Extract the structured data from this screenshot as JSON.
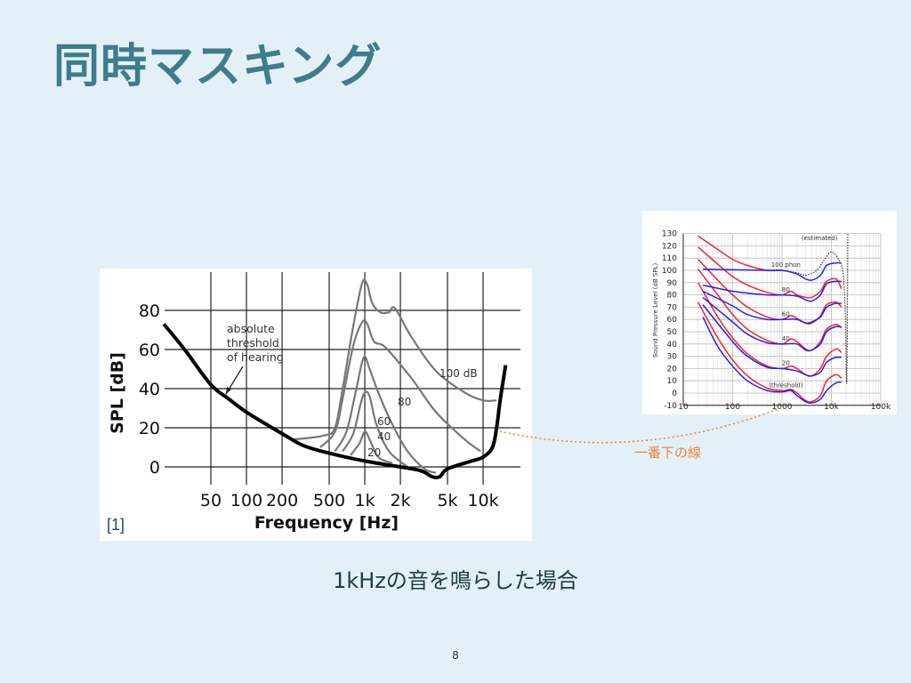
{
  "slide": {
    "title": "同時マスキング",
    "caption": "1kHzの音を鳴らした場合",
    "reference": "[1]",
    "connector_note": "一番下の線",
    "page_number": "8",
    "colors": {
      "title": "#3e7d8b",
      "background": "#e4f0f7",
      "note": "#e8873a"
    }
  },
  "chart_data": [
    {
      "type": "line",
      "xlabel": "Frequency [Hz]",
      "ylabel": "SPL [dB]",
      "x_scale": "log",
      "xlim": [
        20,
        16000
      ],
      "ylim": [
        -8,
        96
      ],
      "grid": true,
      "x_ticks": [
        {
          "v": 50,
          "label": "50"
        },
        {
          "v": 100,
          "label": "100"
        },
        {
          "v": 200,
          "label": "200"
        },
        {
          "v": 500,
          "label": "500"
        },
        {
          "v": 1000,
          "label": "1k"
        },
        {
          "v": 2000,
          "label": "2k"
        },
        {
          "v": 5000,
          "label": "5k"
        },
        {
          "v": 10000,
          "label": "10k"
        }
      ],
      "y_ticks": [
        0,
        20,
        40,
        60,
        80
      ],
      "annotation": [
        "absolute",
        "threshold",
        "of hearing"
      ],
      "series": [
        {
          "name": "absolute threshold of hearing",
          "color": "#000000",
          "points": [
            [
              20,
              73
            ],
            [
              30,
              60
            ],
            [
              50,
              42
            ],
            [
              70,
              35
            ],
            [
              100,
              28
            ],
            [
              200,
              17
            ],
            [
              300,
              11
            ],
            [
              500,
              7
            ],
            [
              1000,
              3
            ],
            [
              2000,
              0
            ],
            [
              3000,
              -2
            ],
            [
              3700,
              -5
            ],
            [
              4300,
              -5
            ],
            [
              5000,
              -1
            ],
            [
              8000,
              3
            ],
            [
              10000,
              5
            ],
            [
              12000,
              10
            ],
            [
              13000,
              20
            ],
            [
              14000,
              35
            ],
            [
              15500,
              52
            ]
          ]
        },
        {
          "name": "100 dB",
          "color": "#777777",
          "points": [
            [
              250,
              14
            ],
            [
              450,
              16
            ],
            [
              560,
              20
            ],
            [
              650,
              40
            ],
            [
              800,
              72
            ],
            [
              950,
              94
            ],
            [
              1050,
              93
            ],
            [
              1150,
              84
            ],
            [
              1350,
              79
            ],
            [
              1600,
              79
            ],
            [
              1800,
              81
            ],
            [
              2500,
              66
            ],
            [
              4000,
              49
            ],
            [
              7000,
              38
            ],
            [
              10000,
              34
            ],
            [
              13000,
              34
            ]
          ]
        },
        {
          "name": "80",
          "color": "#777777",
          "points": [
            [
              420,
              10
            ],
            [
              560,
              18
            ],
            [
              650,
              35
            ],
            [
              800,
              62
            ],
            [
              950,
              74
            ],
            [
              1050,
              73
            ],
            [
              1200,
              64
            ],
            [
              1500,
              61
            ],
            [
              2500,
              45
            ],
            [
              4000,
              28
            ],
            [
              7000,
              14
            ],
            [
              9500,
              8
            ]
          ]
        },
        {
          "name": "60",
          "color": "#777777",
          "points": [
            [
              560,
              8
            ],
            [
              700,
              18
            ],
            [
              850,
              40
            ],
            [
              980,
              56
            ],
            [
              1100,
              50
            ],
            [
              1300,
              38
            ],
            [
              1700,
              22
            ],
            [
              2300,
              8
            ],
            [
              3200,
              -1
            ],
            [
              4000,
              -3
            ]
          ]
        },
        {
          "name": "40",
          "color": "#777777",
          "points": [
            [
              650,
              8
            ],
            [
              800,
              17
            ],
            [
              920,
              32
            ],
            [
              1000,
              38
            ],
            [
              1100,
              36
            ],
            [
              1250,
              22
            ],
            [
              1600,
              8
            ],
            [
              2300,
              0
            ]
          ]
        },
        {
          "name": "20",
          "color": "#777777",
          "points": [
            [
              760,
              6
            ],
            [
              900,
              12
            ],
            [
              1000,
              18
            ],
            [
              1100,
              14
            ],
            [
              1300,
              5
            ],
            [
              1700,
              2
            ]
          ]
        }
      ]
    },
    {
      "type": "line",
      "ylabel": "Sound Pressure Level (dB SPL)",
      "x_scale": "log",
      "xlim": [
        10,
        100000
      ],
      "ylim": [
        -10,
        130
      ],
      "grid": true,
      "x_ticks": [
        {
          "v": 10,
          "label": "10"
        },
        {
          "v": 100,
          "label": "100"
        },
        {
          "v": 1000,
          "label": "1000"
        },
        {
          "v": 10000,
          "label": "10k"
        },
        {
          "v": 100000,
          "label": "100k"
        }
      ],
      "y_ticks": [
        -10,
        0,
        10,
        20,
        30,
        40,
        50,
        60,
        70,
        80,
        90,
        100,
        110,
        120,
        130
      ],
      "annotations": [
        {
          "text": "100 phon",
          "x": 1000,
          "y": 102
        },
        {
          "text": "80",
          "x": 1000,
          "y": 82
        },
        {
          "text": "60",
          "x": 1000,
          "y": 62
        },
        {
          "text": "40",
          "x": 1000,
          "y": 42
        },
        {
          "text": "20",
          "x": 1000,
          "y": 22
        },
        {
          "text": "(threshold)",
          "x": 1000,
          "y": 4
        },
        {
          "text": "(estimated)",
          "x": 12000,
          "y": 124
        }
      ],
      "series": [
        {
          "color": "#ff2020",
          "points": [
            [
              20,
              74
            ],
            [
              50,
              45
            ],
            [
              100,
              27
            ],
            [
              200,
              14
            ],
            [
              500,
              4
            ],
            [
              1000,
              2
            ],
            [
              1500,
              3
            ],
            [
              2000,
              0
            ],
            [
              3000,
              -6
            ],
            [
              4000,
              -7
            ],
            [
              6000,
              -2
            ],
            [
              8000,
              10
            ],
            [
              12500,
              15
            ],
            [
              16000,
              12
            ]
          ]
        },
        {
          "color": "#ff2020",
          "points": [
            [
              20,
              90
            ],
            [
              50,
              62
            ],
            [
              100,
              45
            ],
            [
              200,
              32
            ],
            [
              500,
              22
            ],
            [
              1000,
              20
            ],
            [
              1500,
              22
            ],
            [
              2000,
              20
            ],
            [
              3000,
              15
            ],
            [
              4000,
              14
            ],
            [
              6000,
              20
            ],
            [
              8000,
              30
            ],
            [
              12500,
              36
            ],
            [
              16000,
              33
            ]
          ]
        },
        {
          "color": "#ff2020",
          "points": [
            [
              20,
              101
            ],
            [
              50,
              80
            ],
            [
              100,
              64
            ],
            [
              200,
              52
            ],
            [
              500,
              43
            ],
            [
              1000,
              40
            ],
            [
              1500,
              44
            ],
            [
              2000,
              42
            ],
            [
              3000,
              36
            ],
            [
              4000,
              35
            ],
            [
              6000,
              42
            ],
            [
              8000,
              52
            ],
            [
              12500,
              56
            ],
            [
              16000,
              53
            ]
          ]
        },
        {
          "color": "#ff2020",
          "points": [
            [
              20,
              109
            ],
            [
              50,
              92
            ],
            [
              100,
              80
            ],
            [
              200,
              70
            ],
            [
              500,
              62
            ],
            [
              1000,
              60
            ],
            [
              1500,
              63
            ],
            [
              2000,
              61
            ],
            [
              3000,
              57
            ],
            [
              4000,
              57
            ],
            [
              6000,
              63
            ],
            [
              8000,
              72
            ],
            [
              12500,
              74
            ],
            [
              16000,
              70
            ]
          ]
        },
        {
          "color": "#ff2020",
          "points": [
            [
              20,
              119
            ],
            [
              50,
              105
            ],
            [
              100,
              95
            ],
            [
              200,
              88
            ],
            [
              500,
              82
            ],
            [
              1000,
              80
            ],
            [
              1500,
              83
            ],
            [
              2000,
              80
            ],
            [
              3000,
              78
            ],
            [
              4000,
              78
            ],
            [
              6000,
              83
            ],
            [
              8000,
              91
            ],
            [
              12500,
              93
            ],
            [
              16000,
              85
            ]
          ]
        },
        {
          "color": "#ff2020",
          "points": [
            [
              20,
              128
            ],
            [
              50,
              117
            ],
            [
              100,
              109
            ],
            [
              200,
              104
            ],
            [
              500,
              100
            ],
            [
              1000,
              100
            ]
          ]
        },
        {
          "color": "#2020ff",
          "points": [
            [
              25,
              62
            ],
            [
              50,
              38
            ],
            [
              100,
              22
            ],
            [
              200,
              10
            ],
            [
              500,
              2
            ],
            [
              1000,
              1
            ],
            [
              1500,
              2
            ],
            [
              2000,
              -2
            ],
            [
              3000,
              -7
            ],
            [
              4000,
              -8
            ],
            [
              6000,
              -5
            ],
            [
              8000,
              2
            ],
            [
              12000,
              8
            ],
            [
              16000,
              9
            ]
          ]
        },
        {
          "color": "#2020ff",
          "points": [
            [
              25,
              72
            ],
            [
              100,
              42
            ],
            [
              200,
              30
            ],
            [
              500,
              21
            ],
            [
              1000,
              20
            ],
            [
              2000,
              18
            ],
            [
              3000,
              15
            ],
            [
              4000,
              14
            ],
            [
              6000,
              17
            ],
            [
              8000,
              25
            ],
            [
              12000,
              29
            ],
            [
              16000,
              29
            ]
          ]
        },
        {
          "color": "#2020ff",
          "points": [
            [
              25,
              78
            ],
            [
              100,
              58
            ],
            [
              200,
              48
            ],
            [
              500,
              41
            ],
            [
              1000,
              40
            ],
            [
              2000,
              40
            ],
            [
              3000,
              35
            ],
            [
              4000,
              35
            ],
            [
              6000,
              40
            ],
            [
              8000,
              50
            ],
            [
              12000,
              54
            ],
            [
              16000,
              54
            ]
          ]
        },
        {
          "color": "#2020ff",
          "points": [
            [
              25,
              83
            ],
            [
              100,
              71
            ],
            [
              200,
              64
            ],
            [
              500,
              60
            ],
            [
              1000,
              60
            ],
            [
              2000,
              60
            ],
            [
              3000,
              57
            ],
            [
              4000,
              58
            ],
            [
              6000,
              62
            ],
            [
              8000,
              70
            ],
            [
              12000,
              73
            ],
            [
              16000,
              73
            ]
          ]
        },
        {
          "color": "#2020ff",
          "points": [
            [
              25,
              88
            ],
            [
              100,
              83
            ],
            [
              500,
              80
            ],
            [
              1000,
              80
            ],
            [
              2000,
              79
            ],
            [
              3000,
              76
            ],
            [
              4000,
              75
            ],
            [
              6000,
              80
            ],
            [
              8000,
              89
            ],
            [
              12000,
              91
            ],
            [
              16000,
              91
            ]
          ]
        },
        {
          "color": "#2020ff",
          "points": [
            [
              25,
              101
            ],
            [
              500,
              100
            ],
            [
              1000,
              100
            ],
            [
              2000,
              97
            ],
            [
              3000,
              93
            ],
            [
              4000,
              92
            ],
            [
              6000,
              96
            ],
            [
              8000,
              104
            ],
            [
              12000,
              106
            ],
            [
              16000,
              106
            ]
          ]
        },
        {
          "color": "#333333",
          "dashed": true,
          "points": [
            [
              1000,
              100
            ],
            [
              2000,
              98
            ],
            [
              3000,
              96
            ],
            [
              5000,
              100
            ],
            [
              7000,
              108
            ],
            [
              10000,
              115
            ],
            [
              14000,
              109
            ],
            [
              17000,
              100
            ],
            [
              18500,
              80
            ],
            [
              19500,
              50
            ],
            [
              20000,
              20
            ],
            [
              20500,
              10
            ],
            [
              21000,
              60
            ],
            [
              21500,
              130
            ]
          ]
        }
      ]
    }
  ]
}
